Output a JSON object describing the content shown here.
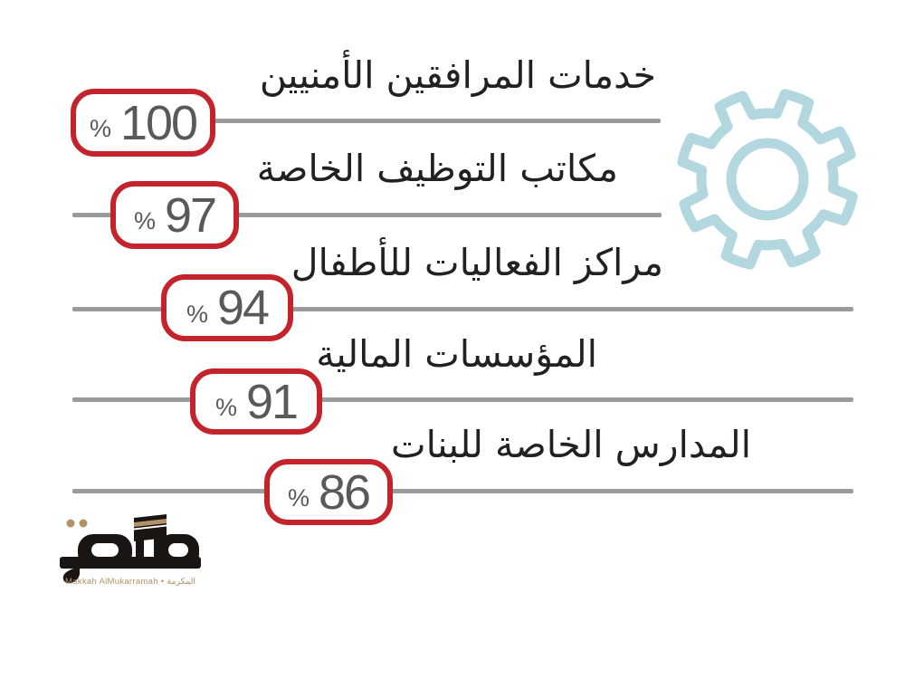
{
  "chart_data": {
    "type": "bar",
    "orientation": "horizontal-rtl",
    "title": "",
    "unit": "%",
    "categories": [
      "خدمات المرافقين الأمنيين",
      "مكاتب التوظيف الخاصة",
      "مراكز الفعاليات للأطفال",
      "المؤسسات المالية",
      "المدارس الخاصة للبنات"
    ],
    "values": [
      100,
      97,
      94,
      91,
      86
    ],
    "xlim": [
      0,
      100
    ],
    "legend": "none",
    "grid": "off"
  },
  "rows": [
    {
      "label": "خدمات المرافقين الأمنيين",
      "value": "100",
      "unit": "%"
    },
    {
      "label": "مكاتب التوظيف الخاصة",
      "value": "97",
      "unit": "%"
    },
    {
      "label": "مراكز الفعاليات للأطفال",
      "value": "94",
      "unit": "%"
    },
    {
      "label": "المؤسسات المالية",
      "value": "91",
      "unit": "%"
    },
    {
      "label": "المدارس الخاصة للبنات",
      "value": "86",
      "unit": "%"
    }
  ],
  "logo": {
    "wordmark": "مكة",
    "tagline": "Makkah AlMukarramah • المكرمة"
  },
  "icons": {
    "gear": "gear-icon",
    "kaaba": "kaaba-icon"
  },
  "colors": {
    "badge_border": "#c4232b",
    "track": "#9b9b9d",
    "value_text": "#59595b",
    "label_text": "#232021",
    "gear": "#b3d7de",
    "logo_gold": "#b29267",
    "logo_black": "#191512"
  }
}
